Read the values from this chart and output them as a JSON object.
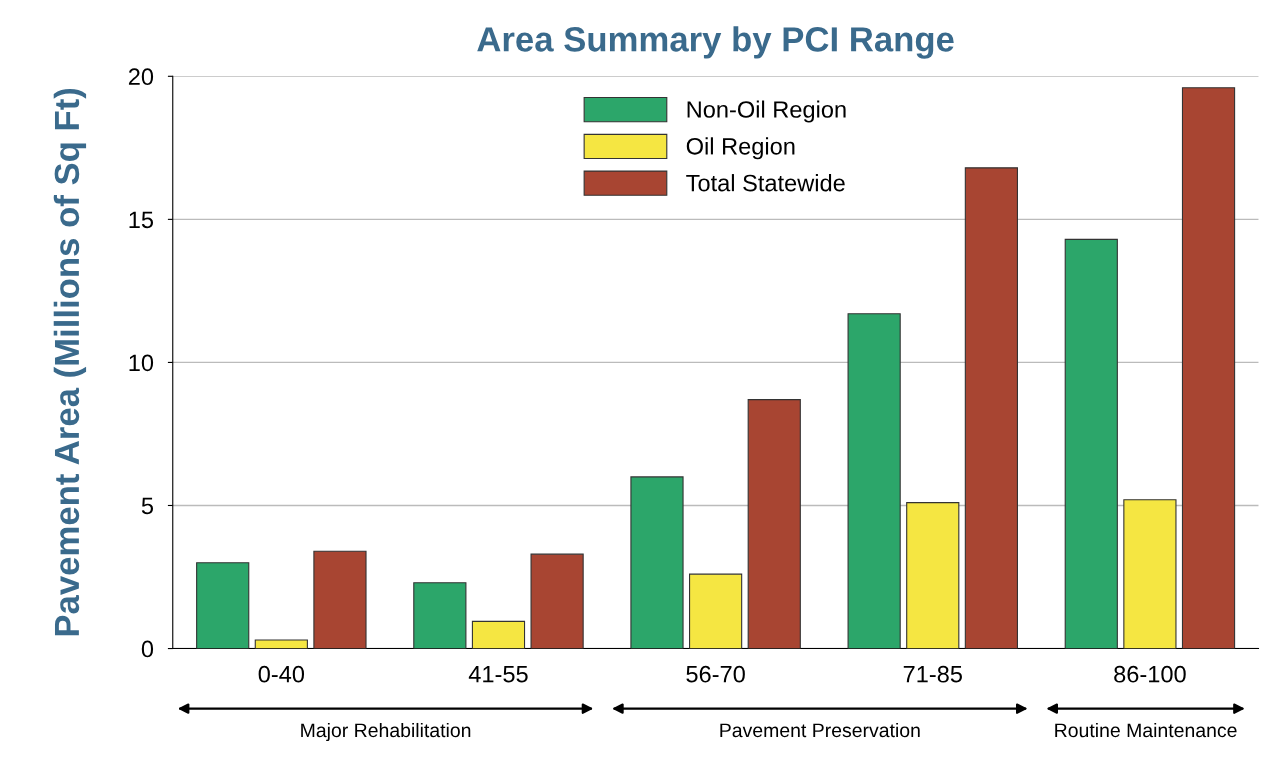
{
  "chart_data": {
    "type": "bar",
    "title": "Area Summary by PCI Range",
    "ylabel": "Pavement Area (Millions of Sq Ft)",
    "categories": [
      "0-40",
      "41-55",
      "56-70",
      "71-85",
      "86-100"
    ],
    "series": [
      {
        "name": "Non-Oil Region",
        "color": "#2ca66a",
        "values": [
          3.0,
          2.3,
          6.0,
          11.7,
          14.3
        ]
      },
      {
        "name": "Oil Region",
        "color": "#f5e642",
        "values": [
          0.3,
          0.95,
          2.6,
          5.1,
          5.2
        ]
      },
      {
        "name": "Total Statewide",
        "color": "#a84532",
        "values": [
          3.4,
          3.3,
          8.7,
          16.8,
          19.6
        ]
      }
    ],
    "ylim": [
      0,
      20
    ],
    "yticks": [
      0,
      5,
      10,
      15,
      20
    ],
    "grid": "y",
    "legend": "top",
    "annotations": [
      "Major Rehabilitation",
      "Pavement Preservation",
      "Routine Maintenance"
    ]
  }
}
